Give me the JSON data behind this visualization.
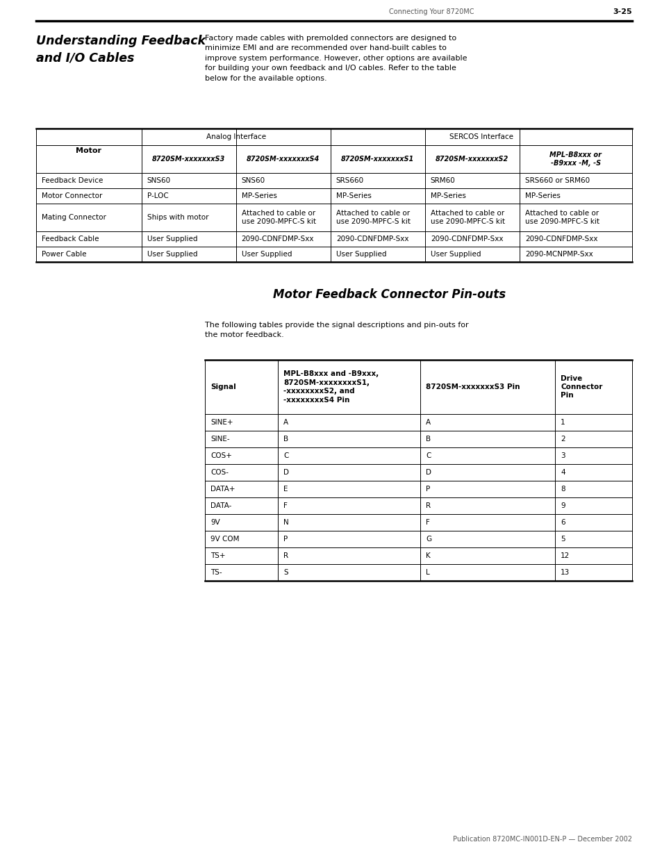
{
  "page_header_left": "Connecting Your 8720MC",
  "page_header_right": "3-25",
  "section1_title": "Understanding Feedback\nand I/O Cables",
  "section1_body": "Factory made cables with premolded connectors are designed to\nminimize EMI and are recommended over hand-built cables to\nimprove system performance. However, other options are available\nfor building your own feedback and I/O cables. Refer to the table\nbelow for the available options.",
  "table1_h2_labels": [
    "8720SM-xxxxxxxS3",
    "8720SM-xxxxxxxS4",
    "8720SM-xxxxxxxS1",
    "8720SM-xxxxxxxS2",
    "MPL-B8xxx or\n-B9xxx -M, -S"
  ],
  "table1_rows": [
    [
      "Feedback Device",
      "SNS60",
      "SNS60",
      "SRS660",
      "SRM60",
      "SRS660 or SRM60"
    ],
    [
      "Motor Connector",
      "P-LOC",
      "MP-Series",
      "MP-Series",
      "MP-Series",
      "MP-Series"
    ],
    [
      "Mating Connector",
      "Ships with motor",
      "Attached to cable or\nuse 2090-MPFC-S kit",
      "Attached to cable or\nuse 2090-MPFC-S kit",
      "Attached to cable or\nuse 2090-MPFC-S kit",
      "Attached to cable or\nuse 2090-MPFC-S kit"
    ],
    [
      "Feedback Cable",
      "User Supplied",
      "2090-CDNFDMP-Sxx",
      "2090-CDNFDMP-Sxx",
      "2090-CDNFDMP-Sxx",
      "2090-CDNFDMP-Sxx"
    ],
    [
      "Power Cable",
      "User Supplied",
      "User Supplied",
      "User Supplied",
      "User Supplied",
      "2090-MCNPMP-Sxx"
    ]
  ],
  "section2_title": "Motor Feedback Connector Pin-outs",
  "section2_body": "The following tables provide the signal descriptions and pin-outs for\nthe motor feedback.",
  "table2_header": [
    "Signal",
    "MPL-B8xxx and -B9xxx,\n8720SM-xxxxxxxxS1,\n-xxxxxxxxS2, and\n-xxxxxxxxS4 Pin",
    "8720SM-xxxxxxxS3 Pin",
    "Drive\nConnector\nPin"
  ],
  "table2_rows": [
    [
      "SINE+",
      "A",
      "A",
      "1"
    ],
    [
      "SINE-",
      "B",
      "B",
      "2"
    ],
    [
      "COS+",
      "C",
      "C",
      "3"
    ],
    [
      "COS-",
      "D",
      "D",
      "4"
    ],
    [
      "DATA+",
      "E",
      "P",
      "8"
    ],
    [
      "DATA-",
      "F",
      "R",
      "9"
    ],
    [
      "9V",
      "N",
      "F",
      "6"
    ],
    [
      "9V COM",
      "P",
      "G",
      "5"
    ],
    [
      "TS+",
      "R",
      "K",
      "12"
    ],
    [
      "TS-",
      "S",
      "L",
      "13"
    ]
  ],
  "footer": "Publication 8720MC-IN001D-EN-P — December 2002",
  "bg_color": "#ffffff"
}
